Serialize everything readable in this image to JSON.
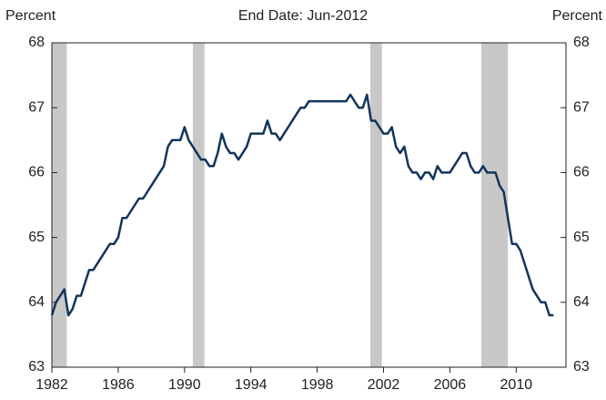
{
  "chart_data": {
    "type": "line",
    "title": "End Date: Jun-2012",
    "ylabel": "Percent",
    "y2label": "Percent",
    "xlim": [
      1982,
      2013
    ],
    "xticks": [
      1982,
      1986,
      1990,
      1994,
      1998,
      2002,
      2006,
      2010
    ],
    "ylim": [
      63,
      68
    ],
    "yticks": [
      63,
      64,
      65,
      66,
      67,
      68
    ],
    "y2lim": [
      63,
      68
    ],
    "y2ticks": [
      63,
      64,
      65,
      66,
      67,
      68
    ],
    "recession_color": "#c8c8c8",
    "recessions": [
      [
        1982,
        1982.9
      ],
      [
        1990.5,
        1991.2
      ],
      [
        2001.2,
        2001.9
      ],
      [
        2007.9,
        2009.5
      ]
    ],
    "x": [
      1982,
      1982.25,
      1982.5,
      1982.75,
      1983,
      1983.25,
      1983.5,
      1983.75,
      1984,
      1984.25,
      1984.5,
      1984.75,
      1985,
      1985.25,
      1985.5,
      1985.75,
      1986,
      1986.25,
      1986.5,
      1986.75,
      1987,
      1987.25,
      1987.5,
      1987.75,
      1988,
      1988.25,
      1988.5,
      1988.75,
      1989,
      1989.25,
      1989.5,
      1989.75,
      1990,
      1990.25,
      1990.5,
      1990.75,
      1991,
      1991.25,
      1991.5,
      1991.75,
      1992,
      1992.25,
      1992.5,
      1992.75,
      1993,
      1993.25,
      1993.5,
      1993.75,
      1994,
      1994.25,
      1994.5,
      1994.75,
      1995,
      1995.25,
      1995.5,
      1995.75,
      1996,
      1996.25,
      1996.5,
      1996.75,
      1997,
      1997.25,
      1997.5,
      1997.75,
      1998,
      1998.25,
      1998.5,
      1998.75,
      1999,
      1999.25,
      1999.5,
      1999.75,
      2000,
      2000.25,
      2000.5,
      2000.75,
      2001,
      2001.25,
      2001.5,
      2001.75,
      2002,
      2002.25,
      2002.5,
      2002.75,
      2003,
      2003.25,
      2003.5,
      2003.75,
      2004,
      2004.25,
      2004.5,
      2004.75,
      2005,
      2005.25,
      2005.5,
      2005.75,
      2006,
      2006.25,
      2006.5,
      2006.75,
      2007,
      2007.25,
      2007.5,
      2007.75,
      2008,
      2008.25,
      2008.5,
      2008.75,
      2009,
      2009.25,
      2009.5,
      2009.75,
      2010,
      2010.25,
      2010.5,
      2010.75,
      2011,
      2011.25,
      2011.5,
      2011.75,
      2012,
      2012.25
    ],
    "series": [
      {
        "color": "#12355b",
        "values": [
          63.8,
          64.0,
          64.1,
          64.2,
          63.8,
          63.9,
          64.1,
          64.1,
          64.3,
          64.5,
          64.5,
          64.6,
          64.7,
          64.8,
          64.9,
          64.9,
          65.0,
          65.3,
          65.3,
          65.4,
          65.5,
          65.6,
          65.6,
          65.7,
          65.8,
          65.9,
          66.0,
          66.1,
          66.4,
          66.5,
          66.5,
          66.5,
          66.7,
          66.5,
          66.4,
          66.3,
          66.2,
          66.2,
          66.1,
          66.1,
          66.3,
          66.6,
          66.4,
          66.3,
          66.3,
          66.2,
          66.3,
          66.4,
          66.6,
          66.6,
          66.6,
          66.6,
          66.8,
          66.6,
          66.6,
          66.5,
          66.6,
          66.7,
          66.8,
          66.9,
          67.0,
          67.0,
          67.1,
          67.1,
          67.1,
          67.1,
          67.1,
          67.1,
          67.1,
          67.1,
          67.1,
          67.1,
          67.2,
          67.1,
          67.0,
          67.0,
          67.2,
          66.8,
          66.8,
          66.7,
          66.6,
          66.6,
          66.7,
          66.4,
          66.3,
          66.4,
          66.1,
          66.0,
          66.0,
          65.9,
          66.0,
          66.0,
          65.9,
          66.1,
          66.0,
          66.0,
          66.0,
          66.1,
          66.2,
          66.3,
          66.3,
          66.1,
          66.0,
          66.0,
          66.1,
          66.0,
          66.0,
          66.0,
          65.8,
          65.7,
          65.3,
          64.9,
          64.9,
          64.8,
          64.6,
          64.4,
          64.2,
          64.1,
          64.0,
          64.0,
          63.8,
          63.8
        ]
      }
    ]
  }
}
